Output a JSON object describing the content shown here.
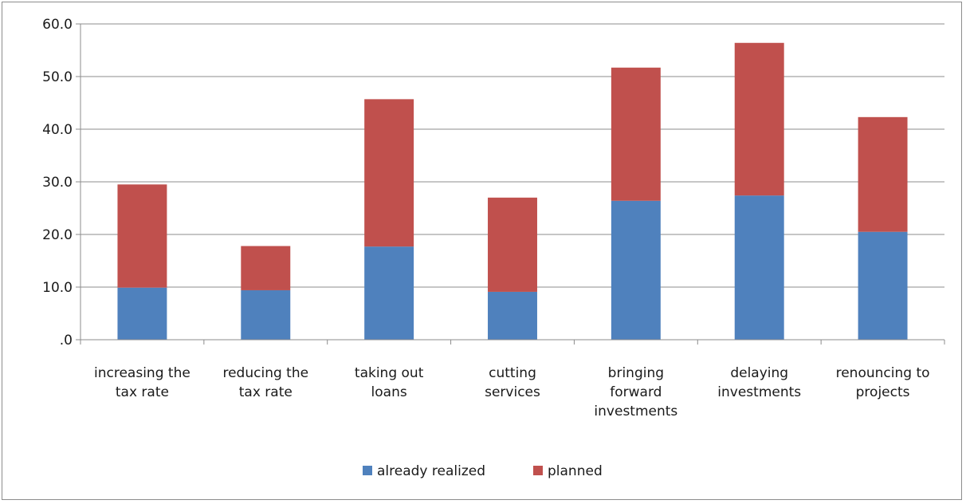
{
  "chart_data": {
    "type": "bar",
    "stacked": true,
    "categories": [
      [
        "increasing the",
        "tax rate"
      ],
      [
        "reducing the",
        "tax rate"
      ],
      [
        "taking out",
        "loans"
      ],
      [
        "cutting",
        "services"
      ],
      [
        "bringing",
        "forward",
        "investments"
      ],
      [
        "delaying",
        "investments"
      ],
      [
        "renouncing to",
        "projects"
      ]
    ],
    "series": [
      {
        "name": "already realized",
        "color": "#4f81bd",
        "values": [
          9.9,
          9.4,
          17.7,
          9.1,
          26.4,
          27.4,
          20.5
        ]
      },
      {
        "name": "planned",
        "color": "#c0504d",
        "values": [
          19.6,
          8.4,
          28.0,
          17.9,
          25.3,
          29.0,
          21.8
        ]
      }
    ],
    "title": "",
    "xlabel": "",
    "ylabel": "",
    "ylim": [
      0,
      60
    ],
    "yticks": [
      0,
      10,
      20,
      30,
      40,
      50,
      60
    ],
    "ytick_labels": [
      ".0",
      "10.0",
      "20.0",
      "30.0",
      "40.0",
      "50.0",
      "60.0"
    ],
    "grid": true,
    "legend_position": "bottom"
  }
}
